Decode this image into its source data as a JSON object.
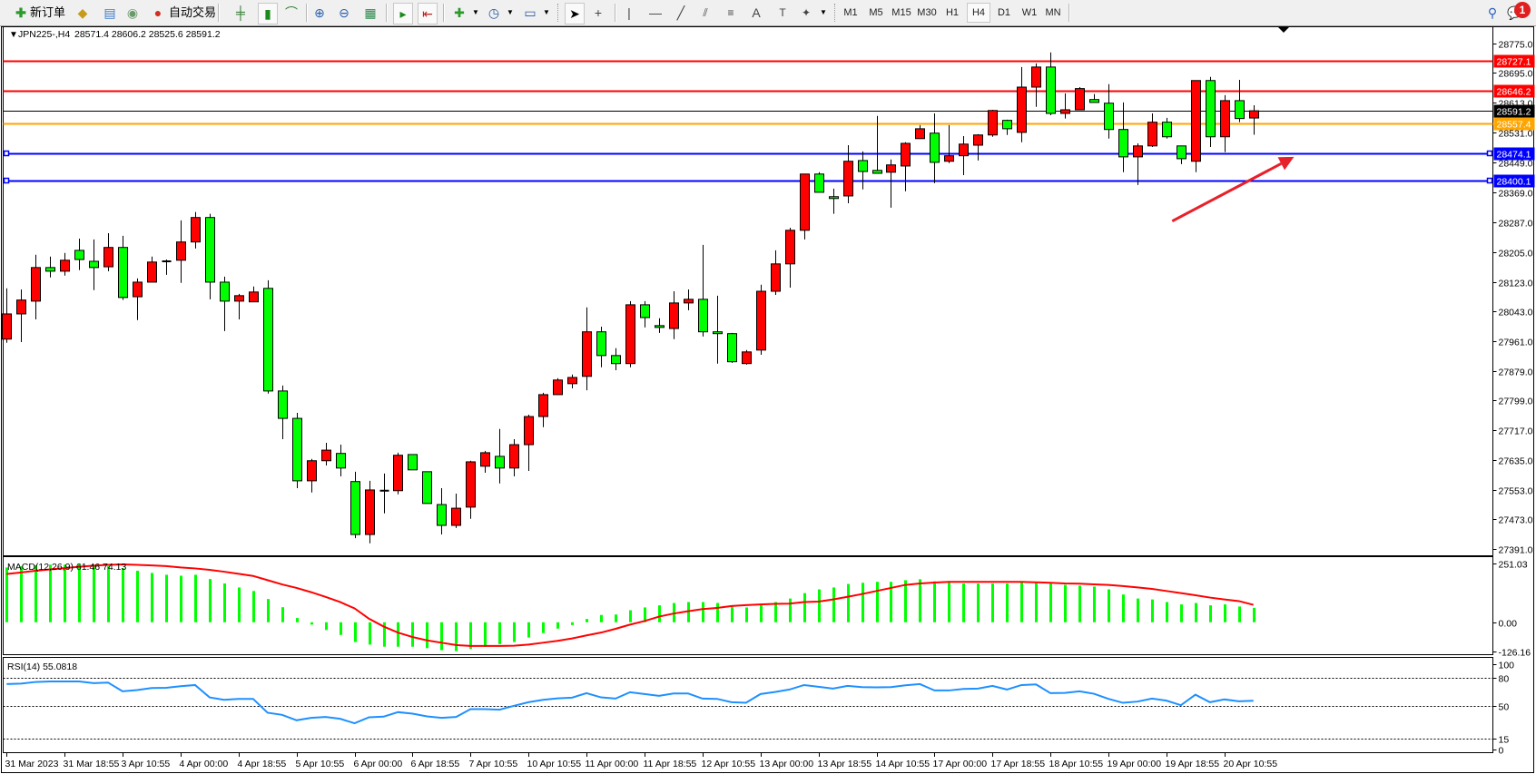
{
  "toolbar": {
    "new_order_label": "新订单",
    "auto_trade_label": "自动交易",
    "timeframes": [
      "M1",
      "M5",
      "M15",
      "M30",
      "H1",
      "H4",
      "D1",
      "W1",
      "MN"
    ],
    "active_timeframe": "H4",
    "notification_count": "1",
    "icons": [
      "new-order-icon",
      "market-watch-icon",
      "navigator-icon",
      "signals-icon",
      "auto-trade-icon",
      "bar-chart-icon",
      "candlestick-icon",
      "line-chart-icon",
      "zoom-in-icon",
      "zoom-out-icon",
      "tile-windows-icon",
      "auto-scroll-icon",
      "chart-shift-icon",
      "indicators-icon",
      "periods-icon",
      "templates-icon",
      "cursor-icon",
      "crosshair-icon",
      "vertical-line-icon",
      "horizontal-line-icon",
      "trendline-icon",
      "equidistant-channel-icon",
      "fibonacci-icon",
      "text-icon",
      "text-label-icon",
      "shapes-icon",
      "search-icon",
      "notification-icon"
    ]
  },
  "chart": {
    "symbol_label": "JPN225-,H4",
    "ohlc_readout": "28571.4 28606.2 28525.6 28591.2"
  },
  "chart_data": [
    {
      "type": "candlestick",
      "symbol": "JPN225-",
      "timeframe": "H4",
      "up_color": "#ff0000",
      "down_color": "#00ff00",
      "ylim": [
        27374,
        28820
      ],
      "price_ticks": [
        "28775.0",
        "28695.0",
        "28613.0",
        "28531.0",
        "28449.0",
        "28369.0",
        "28287.0",
        "28205.0",
        "28123.0",
        "28043.0",
        "27961.0",
        "27879.0",
        "27799.0",
        "27717.0",
        "27635.0",
        "27553.0",
        "27473.0",
        "27391.0"
      ],
      "time_labels": [
        {
          "index": 0,
          "label": "31 Mar 2023"
        },
        {
          "index": 4,
          "label": "31 Mar 18:55"
        },
        {
          "index": 8,
          "label": "3 Apr 10:55"
        },
        {
          "index": 12,
          "label": "4 Apr 00:00"
        },
        {
          "index": 16,
          "label": "4 Apr 18:55"
        },
        {
          "index": 20,
          "label": "5 Apr 10:55"
        },
        {
          "index": 24,
          "label": "6 Apr 00:00"
        },
        {
          "index": 28,
          "label": "6 Apr 18:55"
        },
        {
          "index": 32,
          "label": "7 Apr 10:55"
        },
        {
          "index": 36,
          "label": "10 Apr 10:55"
        },
        {
          "index": 40,
          "label": "11 Apr 00:00"
        },
        {
          "index": 44,
          "label": "11 Apr 18:55"
        },
        {
          "index": 48,
          "label": "12 Apr 10:55"
        },
        {
          "index": 52,
          "label": "13 Apr 00:00"
        },
        {
          "index": 56,
          "label": "13 Apr 18:55"
        },
        {
          "index": 60,
          "label": "14 Apr 10:55"
        },
        {
          "index": 64,
          "label": "17 Apr 00:00"
        },
        {
          "index": 68,
          "label": "17 Apr 18:55"
        },
        {
          "index": 72,
          "label": "18 Apr 10:55"
        },
        {
          "index": 76,
          "label": "19 Apr 00:00"
        },
        {
          "index": 80,
          "label": "19 Apr 18:55"
        },
        {
          "index": 84,
          "label": "20 Apr 10:55"
        }
      ],
      "candles_ohlc": [
        [
          27966,
          28105,
          27956,
          28035
        ],
        [
          28035,
          28102,
          27958,
          28073
        ],
        [
          28070,
          28197,
          28020,
          28162
        ],
        [
          28162,
          28192,
          28135,
          28152
        ],
        [
          28152,
          28202,
          28140,
          28182
        ],
        [
          28209,
          28241,
          28155,
          28184
        ],
        [
          28179,
          28239,
          28100,
          28162
        ],
        [
          28164,
          28256,
          28152,
          28217
        ],
        [
          28217,
          28249,
          28073,
          28080
        ],
        [
          28082,
          28132,
          28018,
          28122
        ],
        [
          28122,
          28192,
          28122,
          28177
        ],
        [
          28179,
          28184,
          28142,
          28179
        ],
        [
          28182,
          28291,
          28120,
          28232
        ],
        [
          28232,
          28314,
          28214,
          28299
        ],
        [
          28299,
          28309,
          28075,
          28122
        ],
        [
          28122,
          28137,
          27988,
          28070
        ],
        [
          28070,
          28090,
          28020,
          28085
        ],
        [
          28068,
          28110,
          28068,
          28095
        ],
        [
          28105,
          28127,
          27817,
          27824
        ],
        [
          27824,
          27839,
          27692,
          27749
        ],
        [
          27749,
          27764,
          27558,
          27578
        ],
        [
          27578,
          27638,
          27546,
          27633
        ],
        [
          27633,
          27682,
          27620,
          27662
        ],
        [
          27653,
          27677,
          27590,
          27613
        ],
        [
          27576,
          27603,
          27421,
          27431
        ],
        [
          27431,
          27578,
          27407,
          27553
        ],
        [
          27551,
          27598,
          27489,
          27551
        ],
        [
          27551,
          27655,
          27541,
          27648
        ],
        [
          27650,
          27650,
          27608,
          27608
        ],
        [
          27603,
          27603,
          27516,
          27516
        ],
        [
          27513,
          27558,
          27431,
          27456
        ],
        [
          27456,
          27543,
          27449,
          27503
        ],
        [
          27506,
          27633,
          27474,
          27630
        ],
        [
          27618,
          27660,
          27600,
          27655
        ],
        [
          27645,
          27720,
          27571,
          27613
        ],
        [
          27613,
          27692,
          27590,
          27677
        ],
        [
          27677,
          27759,
          27605,
          27754
        ],
        [
          27754,
          27819,
          27725,
          27814
        ],
        [
          27814,
          27859,
          27814,
          27854
        ],
        [
          27844,
          27869,
          27831,
          27861
        ],
        [
          27864,
          28053,
          27826,
          27986
        ],
        [
          27986,
          28000,
          27889,
          27921
        ],
        [
          27921,
          27941,
          27881,
          27899
        ],
        [
          27899,
          28070,
          27889,
          28060
        ],
        [
          28060,
          28070,
          27998,
          28025
        ],
        [
          28003,
          28023,
          27983,
          27998
        ],
        [
          27995,
          28097,
          27966,
          28065
        ],
        [
          28065,
          28102,
          28045,
          28075
        ],
        [
          28075,
          28224,
          27973,
          27986
        ],
        [
          27986,
          28085,
          27899,
          27981
        ],
        [
          27981,
          27983,
          27901,
          27904
        ],
        [
          27899,
          27936,
          27896,
          27931
        ],
        [
          27936,
          28115,
          27923,
          28097
        ],
        [
          28097,
          28209,
          28087,
          28172
        ],
        [
          28172,
          28271,
          28107,
          28264
        ],
        [
          28264,
          28418,
          28239,
          28418
        ],
        [
          28418,
          28423,
          28368,
          28368
        ],
        [
          28356,
          28378,
          28309,
          28351
        ],
        [
          28358,
          28497,
          28338,
          28453
        ],
        [
          28455,
          28480,
          28376,
          28425
        ],
        [
          28428,
          28577,
          28420,
          28420
        ],
        [
          28423,
          28458,
          28326,
          28443
        ],
        [
          28440,
          28505,
          28371,
          28502
        ],
        [
          28515,
          28552,
          28515,
          28542
        ],
        [
          28530,
          28584,
          28393,
          28450
        ],
        [
          28453,
          28552,
          28448,
          28468
        ],
        [
          28468,
          28522,
          28415,
          28500
        ],
        [
          28497,
          28527,
          28455,
          28525
        ],
        [
          28525,
          28594,
          28520,
          28592
        ],
        [
          28565,
          28567,
          28525,
          28542
        ],
        [
          28532,
          28711,
          28505,
          28656
        ],
        [
          28656,
          28721,
          28602,
          28711
        ],
        [
          28711,
          28751,
          28579,
          28584
        ],
        [
          28584,
          28639,
          28570,
          28594
        ],
        [
          28594,
          28656,
          28594,
          28652
        ],
        [
          28622,
          28637,
          28614,
          28614
        ],
        [
          28612,
          28664,
          28515,
          28540
        ],
        [
          28540,
          28614,
          28423,
          28465
        ],
        [
          28465,
          28502,
          28388,
          28495
        ],
        [
          28495,
          28584,
          28492,
          28560
        ],
        [
          28560,
          28572,
          28515,
          28520
        ],
        [
          28495,
          28495,
          28445,
          28460
        ],
        [
          28453,
          28674,
          28423,
          28674
        ],
        [
          28674,
          28684,
          28492,
          28520
        ],
        [
          28520,
          28634,
          28478,
          28619
        ],
        [
          28619,
          28676,
          28560,
          28570
        ],
        [
          28571.4,
          28606.2,
          28525.6,
          28591.2
        ]
      ],
      "horizontal_lines": [
        {
          "price": 28727.1,
          "label": "28727.1",
          "color": "#ff0000",
          "text_color": "#ffffff"
        },
        {
          "price": 28646.2,
          "label": "28646.2",
          "color": "#ff0000",
          "text_color": "#ffffff"
        },
        {
          "price": 28591.2,
          "label": "28591.2",
          "color": "#000000",
          "text_color": "#ffffff"
        },
        {
          "price": 28557.4,
          "label": "28557.4",
          "color": "#ffa500",
          "text_color": "#ffffff"
        },
        {
          "price": 28474.1,
          "label": "28474.1",
          "color": "#0000ff",
          "text_color": "#ffffff"
        },
        {
          "price": 28400.1,
          "label": "28400.1",
          "color": "#0000ff",
          "text_color": "#ffffff"
        }
      ],
      "annotations": [
        {
          "type": "arrow",
          "color": "#e8202a",
          "from": [
            80.4,
            28289
          ],
          "to": [
            88.8,
            28465
          ]
        }
      ]
    },
    {
      "type": "bar",
      "indicator_label": "MACD(12,26,9) 61.46 74.13",
      "bar_color": "#00ff00",
      "signal_color": "#ff0000",
      "ylim": [
        -136,
        277
      ],
      "ticks": [
        {
          "value": 251.03,
          "label": "251.03"
        },
        {
          "value": 0,
          "label": "0.00"
        },
        {
          "value": -126.16,
          "label": "-126.16"
        }
      ],
      "macd_histogram": [
        233,
        238,
        242,
        245,
        245,
        246,
        242,
        238,
        230,
        219,
        210,
        202,
        198,
        202,
        184,
        165,
        148,
        133,
        99,
        64,
        18,
        -10,
        -33,
        -54,
        -84,
        -95,
        -104,
        -104,
        -104,
        -110,
        -119,
        -123,
        -113,
        -104,
        -93,
        -84,
        -65,
        -46,
        -27,
        -12,
        14,
        31,
        33,
        51,
        63,
        72,
        82,
        86,
        86,
        82,
        69,
        63,
        74,
        86,
        101,
        124,
        140,
        148,
        163,
        168,
        172,
        172,
        179,
        183,
        174,
        172,
        165,
        165,
        165,
        165,
        169,
        169,
        165,
        159,
        156,
        152,
        140,
        118,
        101,
        97,
        86,
        76,
        82,
        72,
        76,
        67,
        61.46
      ],
      "signal": [
        205,
        212,
        219,
        225,
        230,
        236,
        241,
        244,
        246,
        244,
        242,
        239,
        233,
        229,
        223,
        215,
        206,
        197,
        179,
        161,
        146,
        128,
        108,
        86,
        59,
        15,
        -18,
        -44,
        -63,
        -77,
        -87,
        -97,
        -101,
        -101,
        -101,
        -100,
        -95,
        -87,
        -79,
        -69,
        -56,
        -44,
        -28,
        -10,
        5,
        24,
        37,
        47,
        56,
        61,
        69,
        73,
        76,
        78,
        79,
        86,
        88,
        97,
        108,
        120,
        133,
        146,
        159,
        165,
        169,
        172,
        172,
        172,
        172,
        172,
        172,
        170,
        168,
        165,
        164,
        161,
        159,
        154,
        148,
        142,
        133,
        124,
        115,
        105,
        97,
        90,
        74.13
      ]
    },
    {
      "type": "line",
      "indicator_label": "RSI(14) 55.0818",
      "line_color": "#1e90ff",
      "ylim": [
        0,
        101
      ],
      "levels": [
        80,
        50,
        15
      ],
      "ticks": [
        {
          "value": 100,
          "label": "100"
        },
        {
          "value": 80,
          "label": "80"
        },
        {
          "value": 50,
          "label": "50"
        },
        {
          "value": 15,
          "label": "15"
        },
        {
          "value": 0,
          "label": "0"
        }
      ],
      "values": [
        72.9,
        73.5,
        75.2,
        75.8,
        75.8,
        75.8,
        73.9,
        74.5,
        65.2,
        66.5,
        68.7,
        69,
        70.6,
        71.9,
        58.7,
        56.1,
        57.1,
        57.1,
        42.3,
        40,
        34.2,
        36.8,
        37.7,
        35.8,
        31,
        37.4,
        38.1,
        42.9,
        41.3,
        38.4,
        36.8,
        37.7,
        46.1,
        46.1,
        45.5,
        49.7,
        53.5,
        56.1,
        57.7,
        58.4,
        63.2,
        58.7,
        57.4,
        64.2,
        62.3,
        60.3,
        62.9,
        62.9,
        57.4,
        57.1,
        53.5,
        52.9,
        62.3,
        64.5,
        67.1,
        71.9,
        70,
        68.1,
        71,
        69.7,
        69.4,
        69.7,
        71.6,
        72.9,
        66.1,
        66.1,
        67.7,
        68.1,
        71,
        67.1,
        71.9,
        72.6,
        63.2,
        63.5,
        65.2,
        62.6,
        57.1,
        52.9,
        54.2,
        57.4,
        55.2,
        50.3,
        61.6,
        53.5,
        56.5,
        54.5,
        55.0818
      ]
    }
  ]
}
